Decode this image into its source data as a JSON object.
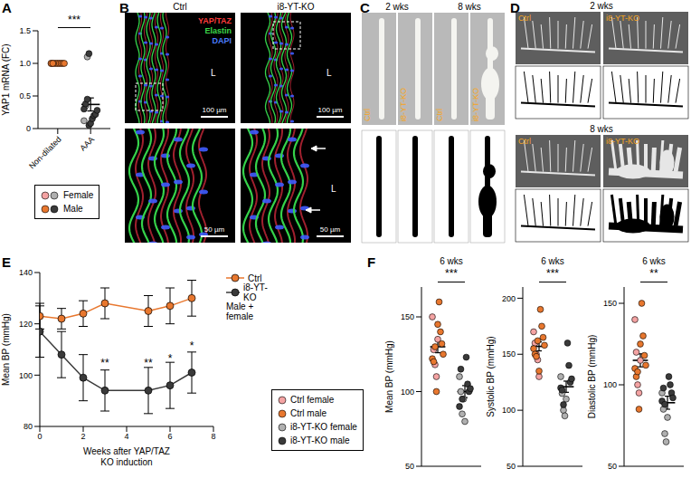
{
  "chart_data": [
    {
      "panel": "A",
      "type": "scatter",
      "y_label": "YAP1 mRNA (FC)",
      "categories": [
        "Non-dilated",
        "AAA"
      ],
      "ylim": [
        0,
        1.5
      ],
      "yticks": [
        0,
        0.5,
        {
          "value": 1,
          "label": "1.0"
        },
        1.5
      ],
      "series": [
        {
          "name": "Female",
          "colors": [
            "#f4a3a3",
            "#b0b0b0"
          ],
          "values": [
            [
              1,
              1,
              1
            ],
            [
              0.12,
              0.35,
              1.1
            ]
          ]
        },
        {
          "name": "Male",
          "colors": [
            "#e8772e",
            "#3a3a3a"
          ],
          "values": [
            [
              1,
              1,
              1,
              1,
              1,
              1,
              1,
              1
            ],
            [
              0.05,
              0.08,
              0.15,
              0.2,
              0.22,
              0.28,
              0.3,
              0.38,
              0.45,
              1.15
            ]
          ]
        }
      ],
      "mean": [
        1,
        0.37
      ],
      "sem": [
        0,
        0.1
      ],
      "annotations": [
        {
          "text": "***"
        }
      ]
    },
    {
      "panel": "E",
      "type": "line",
      "y_label": "Mean BP (mmHg)",
      "x_label": "Weeks after YAP/TAZ\nKO induction",
      "x": [
        0,
        1,
        2,
        3,
        5,
        6,
        7
      ],
      "xlim": [
        0,
        8
      ],
      "xticks": [
        0,
        2,
        4,
        6,
        8
      ],
      "ylim": [
        80,
        140
      ],
      "yticks": [
        80,
        100,
        120,
        140
      ],
      "legend": "right",
      "legend_title": "Male + female",
      "series": [
        {
          "name": "Ctrl",
          "color": "#e8772e",
          "values": [
            123,
            122,
            124,
            128,
            125,
            127,
            130
          ],
          "errors": [
            5,
            4,
            5,
            6,
            6,
            7,
            7
          ]
        },
        {
          "name": "i8-YT-KO",
          "color": "#3a3a3a",
          "values": [
            117,
            108,
            99,
            94,
            94,
            96,
            101
          ],
          "errors": [
            10,
            9,
            9,
            8,
            9,
            9,
            8
          ],
          "annotations": [
            null,
            null,
            null,
            "**",
            "**",
            "*",
            "*"
          ]
        }
      ]
    },
    {
      "panel": "F",
      "type": "scatter",
      "title": "6 wks",
      "tick_labels": "y",
      "series": [
        {
          "name": "Ctrl female",
          "color": "#f4a3a3"
        },
        {
          "name": "Ctrl male",
          "color": "#e8772e"
        },
        {
          "name": "i8-YT-KO female",
          "color": "#b0b0b0"
        },
        {
          "name": "i8-YT-KO male",
          "color": "#3a3a3a"
        }
      ],
      "subplots": [
        {
          "y_label": "Mean BP (mmHg)",
          "ylim": [
            50,
            170
          ],
          "yticks": [
            50,
            100,
            150
          ],
          "values": [
            [
              150,
              128,
              118,
              110,
              135
            ],
            [
              160,
              140,
              132,
              125,
              122,
              120,
              130,
              100,
              145
            ],
            [
              110,
              100,
              85,
              95,
              80
            ],
            [
              123,
              105,
              100,
              102,
              90,
              115,
              95
            ]
          ],
          "mean": [
            130,
            100
          ],
          "sem": [
            4,
            4
          ],
          "annotation": "***"
        },
        {
          "y_label": "Systolic BP (mmHg)",
          "ylim": [
            50,
            210
          ],
          "yticks": [
            50,
            100,
            150,
            200
          ],
          "values": [
            [
              170,
              160,
              150,
              145,
              130
            ],
            [
              190,
              175,
              165,
              158,
              155,
              150,
              148,
              162,
              135
            ],
            [
              130,
              115,
              100,
              95,
              110
            ],
            [
              160,
              140,
              125,
              128,
              120,
              118,
              105
            ]
          ],
          "mean": [
            157,
            121
          ],
          "sem": [
            4,
            5
          ],
          "annotation": "***"
        },
        {
          "y_label": "Diastolic BP (mmHg)",
          "ylim": [
            50,
            160
          ],
          "yticks": [
            50,
            100,
            150
          ],
          "values": [
            [
              140,
              120,
              100,
              95,
              115
            ],
            [
              150,
              130,
              118,
              112,
              110,
              105,
              108,
              85,
              125
            ],
            [
              95,
              85,
              70,
              65,
              80
            ],
            [
              105,
              100,
              95,
              92,
              90,
              98,
              88
            ]
          ],
          "mean": [
            115,
            89
          ],
          "sem": [
            4,
            4
          ],
          "annotation": "**"
        }
      ]
    }
  ],
  "images": [
    {
      "panel": "B",
      "columns": [
        "Ctrl",
        "i8-YT-KO"
      ],
      "channels": [
        {
          "name": "YAP/TAZ",
          "color": "#ff3b3b"
        },
        {
          "name": "Elastin",
          "color": "#3cd84a"
        },
        {
          "name": "DAPI",
          "color": "#4a7dff"
        }
      ],
      "lumen": "L",
      "scale_bars": [
        "100 µm",
        "50 µm"
      ]
    },
    {
      "panel": "C",
      "times": [
        "2 wks",
        "8 wks"
      ],
      "groups": [
        "Ctrl",
        "i8-YT-KO"
      ]
    },
    {
      "panel": "D",
      "times": [
        "2 wks",
        "8 wks"
      ],
      "groups": [
        "Ctrl",
        "i8-YT-KO"
      ]
    }
  ]
}
